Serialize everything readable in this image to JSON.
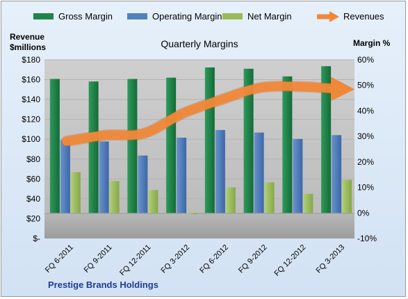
{
  "chart_data": {
    "type": "bar",
    "title": "Quarterly Margins",
    "subtitle": "Prestige Brands Holdings",
    "left_axis_label": [
      "Revenue",
      "$millions"
    ],
    "right_axis_label": "Margin %",
    "categories": [
      "FQ 6-2011",
      "FQ 9-2011",
      "FQ 12-2011",
      "FQ 3-2012",
      "FQ 6-2012",
      "FQ 9-2012",
      "FQ 12-2012",
      "FQ 3-2013"
    ],
    "left_axis": {
      "ylim": [
        0,
        180
      ],
      "ticks": [
        0,
        20,
        40,
        60,
        80,
        100,
        120,
        140,
        160,
        180
      ],
      "tick_labels": [
        "$-",
        "$20",
        "$40",
        "$60",
        "$80",
        "$100",
        "$120",
        "$140",
        "$160",
        "$180"
      ]
    },
    "right_axis": {
      "ylim": [
        -10,
        60
      ],
      "ticks": [
        -10,
        0,
        10,
        20,
        30,
        40,
        50,
        60
      ],
      "tick_labels": [
        "-10%",
        "0%",
        "10%",
        "20%",
        "30%",
        "40%",
        "50%",
        "60%"
      ]
    },
    "series": [
      {
        "name": "Gross Margin",
        "type": "bar",
        "axis": "right",
        "color": "#1e8449",
        "values": [
          52.5,
          51.5,
          52.5,
          53.0,
          57.0,
          56.5,
          53.5,
          57.5
        ]
      },
      {
        "name": "Operating Margin",
        "type": "bar",
        "axis": "right",
        "color": "#4f81bd",
        "values": [
          28.5,
          28.0,
          22.5,
          29.5,
          32.5,
          31.5,
          29.0,
          30.5
        ]
      },
      {
        "name": "Net Margin",
        "type": "bar",
        "axis": "right",
        "color": "#9bbb59",
        "values": [
          16.0,
          12.5,
          9.0,
          -0.5,
          10.0,
          12.0,
          7.5,
          13.0
        ]
      },
      {
        "name": "Revenues",
        "type": "line",
        "axis": "left",
        "color": "#f0883a",
        "values": [
          98,
          104,
          106,
          126,
          140,
          152,
          153,
          151
        ]
      }
    ],
    "legend_position": "top",
    "grid": true,
    "colors": {
      "plot_bg": "#c4c4c4",
      "plot_floor": "#a8a8a8",
      "frame_bg": "#dce8f5",
      "footnote": "#1f3a93"
    }
  }
}
